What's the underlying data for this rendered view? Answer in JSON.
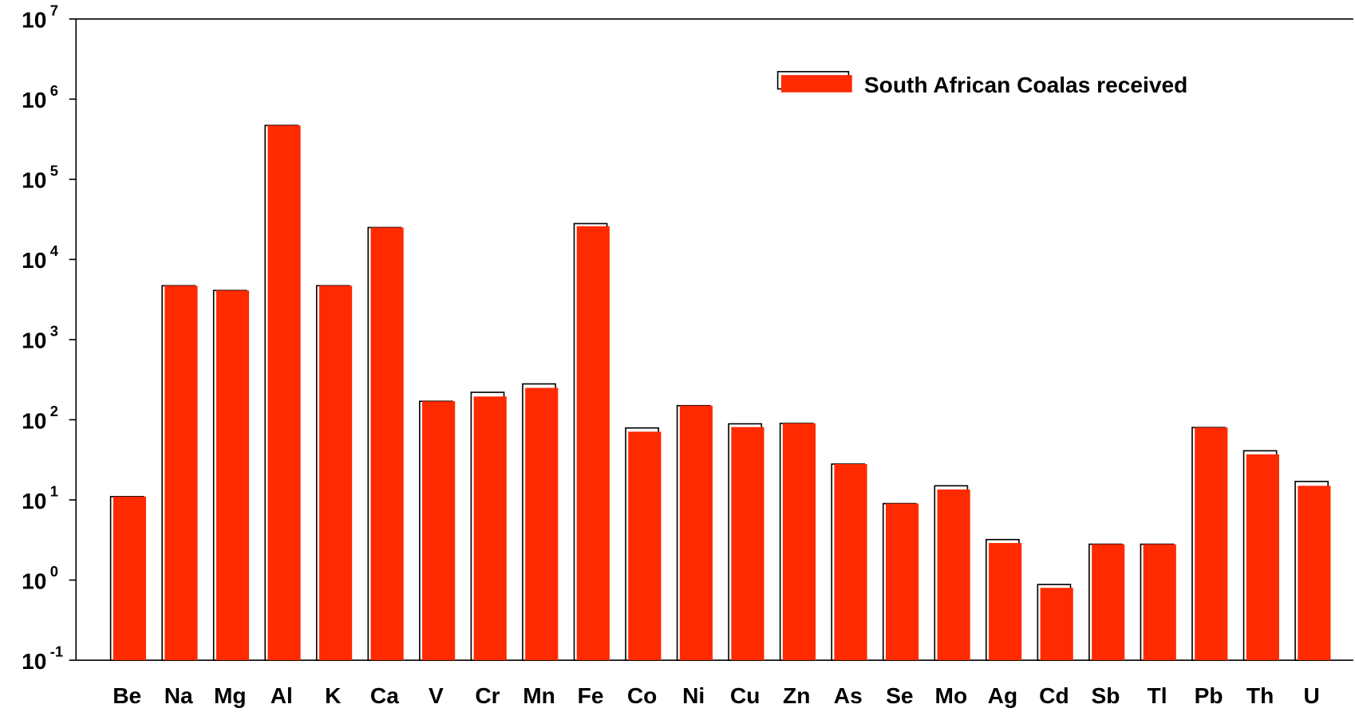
{
  "chart_data": {
    "type": "bar",
    "log_scale": true,
    "categories": [
      "Be",
      "Na",
      "Mg",
      "Al",
      "K",
      "Ca",
      "V",
      "Cr",
      "Mn",
      "Fe",
      "Co",
      "Ni",
      "Cu",
      "Zn",
      "As",
      "Se",
      "Mo",
      "Ag",
      "Cd",
      "Sb",
      "Tl",
      "Pb",
      "Th",
      "U"
    ],
    "series": [
      {
        "name": "South African Coalas received",
        "color": "#ffffff",
        "values": [
          11,
          4700,
          4100,
          470000,
          4700,
          25000,
          170,
          220,
          280,
          28000,
          79,
          150,
          89,
          90,
          28,
          9,
          15,
          3.2,
          0.88,
          2.8,
          2.8,
          80,
          41,
          17
        ]
      },
      {
        "color": "#ff2a00",
        "values": [
          11,
          4700,
          4100,
          470000,
          4700,
          25000,
          170,
          195,
          250,
          26000,
          71,
          150,
          81,
          90,
          28,
          9,
          13.5,
          2.9,
          0.8,
          2.8,
          2.8,
          80,
          37,
          15
        ]
      }
    ],
    "ylim": [
      0.1,
      10000000
    ],
    "yticks": [
      {
        "value": 0.1,
        "label": "10",
        "exp": "-1"
      },
      {
        "value": 1,
        "label": "10",
        "exp": "0"
      },
      {
        "value": 10,
        "label": "10",
        "exp": "1"
      },
      {
        "value": 100,
        "label": "10",
        "exp": "2"
      },
      {
        "value": 1000,
        "label": "10",
        "exp": "3"
      },
      {
        "value": 10000,
        "label": "10",
        "exp": "4"
      },
      {
        "value": 100000,
        "label": "10",
        "exp": "5"
      },
      {
        "value": 1000000,
        "label": "10",
        "exp": "6"
      },
      {
        "value": 10000000,
        "label": "10",
        "exp": "7"
      }
    ],
    "legend": "upper right"
  }
}
